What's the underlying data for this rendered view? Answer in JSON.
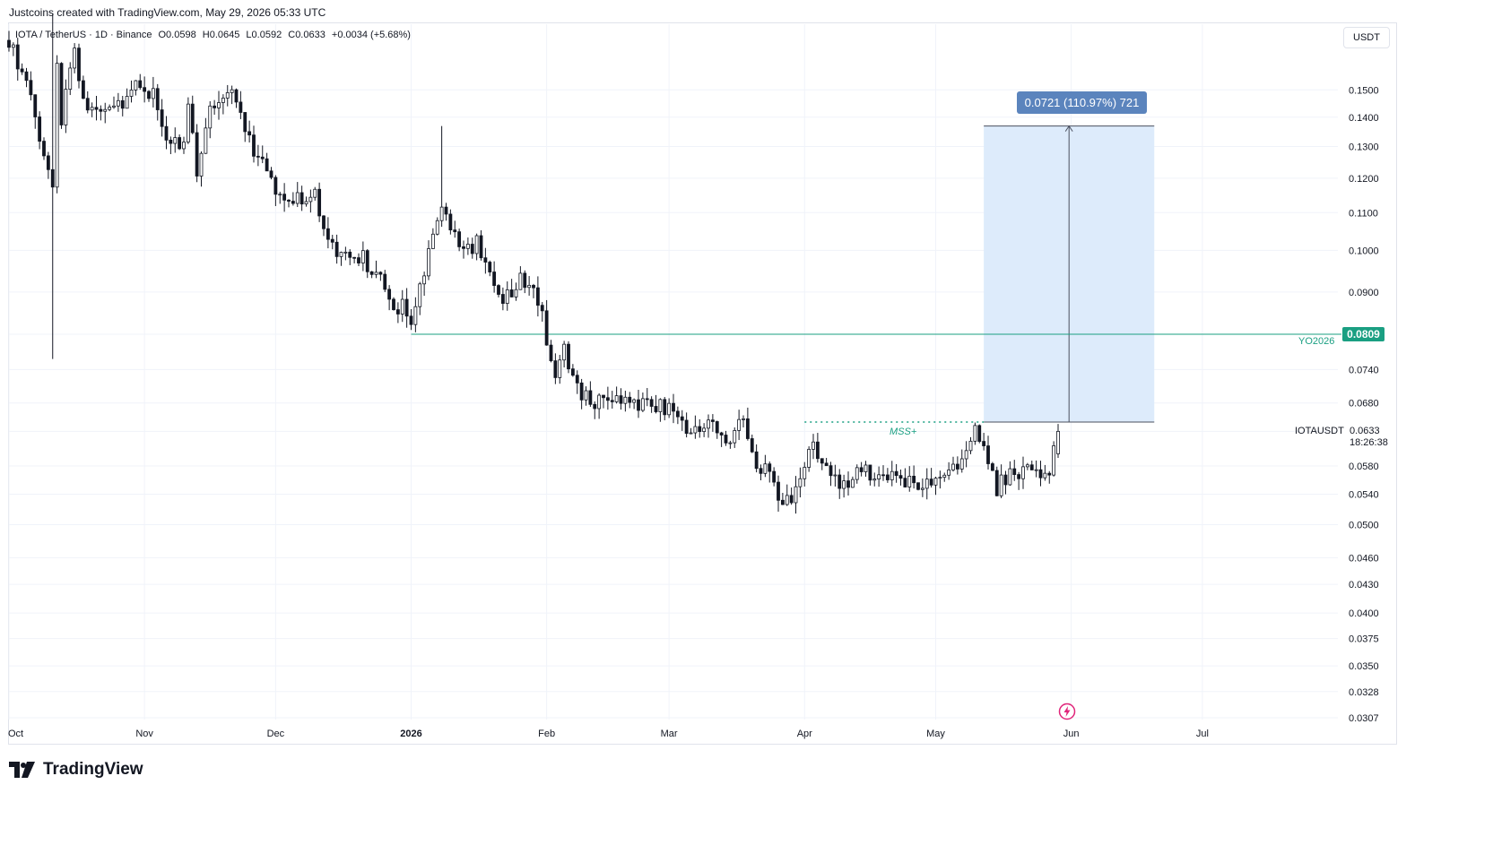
{
  "header": {
    "attribution": "Justcoins created with TradingView.com, May 29, 2026 05:33 UTC"
  },
  "legend": {
    "symbol": "IOTA / TetherUS · 1D · Binance",
    "open": "O0.0598",
    "high": "H0.0645",
    "low": "L0.0592",
    "close": "C0.0633",
    "change": "+0.0034 (+5.68%)"
  },
  "currency_button": "USDT",
  "measure_label": "0.0721 (110.97%) 721",
  "yo_line": {
    "name": "YO2026",
    "value_label": "0.0809",
    "color": "#1a9f82"
  },
  "last_price": {
    "symbol": "IOTAUSDT",
    "value_label": "0.0633",
    "countdown": "18:26:38"
  },
  "mss_label": "MSS+",
  "brand": "TradingView",
  "colors": {
    "up_candle": "#ffffff",
    "down_candle": "#131722",
    "measure_fill": "#dbeafb",
    "accent_teal": "#1a9f82",
    "measure_badge": "#5b84bd"
  },
  "chart_data": {
    "type": "candlestick",
    "y_scale": "log",
    "ylim": [
      0.0307,
      0.17
    ],
    "y_ticks": [
      "0.1500",
      "0.1400",
      "0.1300",
      "0.1200",
      "0.1100",
      "0.1000",
      "0.0900",
      "0.0809",
      "0.0740",
      "0.0680",
      "0.0633",
      "0.0580",
      "0.0540",
      "0.0500",
      "0.0460",
      "0.0430",
      "0.0400",
      "0.0375",
      "0.0350",
      "0.0328",
      "0.0307"
    ],
    "x_labels": [
      "Oct",
      "Nov",
      "Dec",
      "2026",
      "Feb",
      "Mar",
      "Apr",
      "May",
      "Jun",
      "Jul"
    ],
    "x_label_days": [
      0,
      31,
      61,
      92,
      123,
      151,
      182,
      212,
      243,
      273
    ],
    "start": "2025-10-01",
    "last_day": 240,
    "right_edge_day": 304,
    "horizontal_line": {
      "name": "YO2026",
      "value": 0.0809,
      "from_day": 92
    },
    "structure_line": {
      "label": "MSS+",
      "value": 0.0648,
      "from_day": 182,
      "to_day": 223
    },
    "measure": {
      "from_day": 223,
      "to_day": 262,
      "low": 0.0648,
      "high": 0.1369,
      "change": 0.0721,
      "percent": 110.97,
      "ticks": 721
    },
    "anchors": [
      [
        0,
        0.17
      ],
      [
        10,
        0.12
      ],
      [
        10,
        0.182
      ],
      [
        12,
        0.14
      ],
      [
        15,
        0.165
      ],
      [
        18,
        0.14
      ],
      [
        25,
        0.144
      ],
      [
        28,
        0.15
      ],
      [
        33,
        0.15
      ],
      [
        36,
        0.135
      ],
      [
        40,
        0.13
      ],
      [
        41,
        0.145
      ],
      [
        43,
        0.122
      ],
      [
        46,
        0.145
      ],
      [
        50,
        0.15
      ],
      [
        55,
        0.132
      ],
      [
        60,
        0.12
      ],
      [
        63,
        0.113
      ],
      [
        70,
        0.115
      ],
      [
        72,
        0.107
      ],
      [
        75,
        0.098
      ],
      [
        80,
        0.099
      ],
      [
        84,
        0.095
      ],
      [
        88,
        0.087
      ],
      [
        91,
        0.086
      ],
      [
        92,
        0.082
      ],
      [
        95,
        0.096
      ],
      [
        98,
        0.108
      ],
      [
        100,
        0.11
      ],
      [
        103,
        0.1
      ],
      [
        107,
        0.102
      ],
      [
        110,
        0.094
      ],
      [
        113,
        0.087
      ],
      [
        117,
        0.093
      ],
      [
        120,
        0.089
      ],
      [
        122,
        0.085
      ],
      [
        123,
        0.078
      ],
      [
        125,
        0.073
      ],
      [
        127,
        0.077
      ],
      [
        130,
        0.071
      ],
      [
        134,
        0.067
      ],
      [
        137,
        0.069
      ],
      [
        140,
        0.067
      ],
      [
        143,
        0.068
      ],
      [
        146,
        0.068
      ],
      [
        150,
        0.067
      ],
      [
        153,
        0.066
      ],
      [
        157,
        0.063
      ],
      [
        160,
        0.064
      ],
      [
        165,
        0.062
      ],
      [
        168,
        0.066
      ],
      [
        170,
        0.06
      ],
      [
        173,
        0.057
      ],
      [
        175,
        0.055
      ],
      [
        178,
        0.053
      ],
      [
        179,
        0.053
      ],
      [
        181,
        0.056
      ],
      [
        183,
        0.062
      ],
      [
        185,
        0.06
      ],
      [
        188,
        0.057
      ],
      [
        192,
        0.055
      ],
      [
        195,
        0.058
      ],
      [
        198,
        0.057
      ],
      [
        203,
        0.057
      ],
      [
        207,
        0.055
      ],
      [
        212,
        0.055
      ],
      [
        216,
        0.057
      ],
      [
        220,
        0.063
      ],
      [
        222,
        0.063
      ],
      [
        224,
        0.058
      ],
      [
        226,
        0.055
      ],
      [
        230,
        0.057
      ],
      [
        233,
        0.057
      ],
      [
        237,
        0.056
      ],
      [
        239,
        0.0598
      ],
      [
        240,
        0.0633
      ]
    ],
    "spikes": [
      {
        "day": 10,
        "high": 0.182,
        "low": 0.076
      },
      {
        "day": 99,
        "high": 0.1369,
        "low": 0.108
      }
    ],
    "last_candle": {
      "day": 240,
      "open": 0.0598,
      "high": 0.0645,
      "low": 0.0592,
      "close": 0.0633
    }
  }
}
